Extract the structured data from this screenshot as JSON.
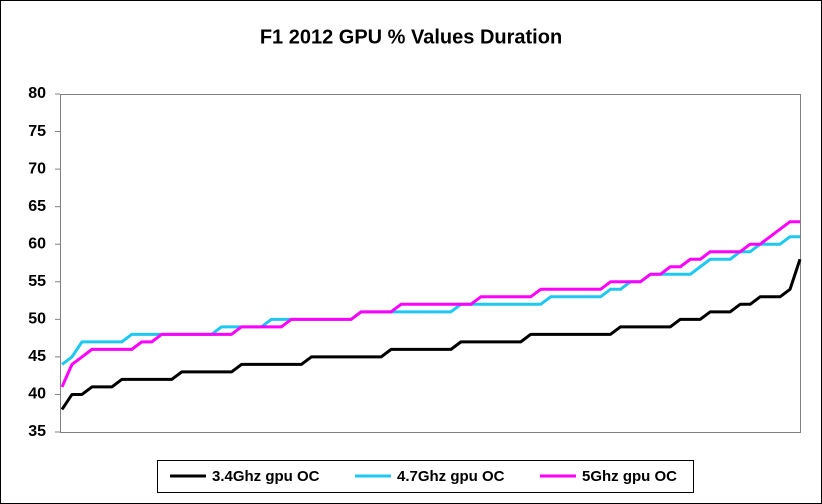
{
  "chart_data": {
    "type": "line",
    "title": "F1 2012 GPU % Values Duration",
    "categories": [
      null,
      null,
      null,
      null,
      null,
      null,
      null,
      null,
      null,
      null,
      null,
      null,
      null,
      null,
      null,
      null,
      null,
      null,
      null,
      null,
      null,
      null,
      null,
      null,
      null,
      null,
      null,
      null,
      null,
      null,
      null,
      null,
      null,
      null,
      null,
      null,
      null,
      null,
      null,
      null,
      null,
      null,
      null,
      null,
      null,
      null,
      null,
      null,
      null,
      null,
      null,
      null,
      null,
      null,
      null,
      null,
      null,
      null,
      null,
      null,
      null,
      null,
      null,
      null,
      null,
      null,
      null,
      null,
      null,
      null,
      null,
      null,
      null,
      null,
      null
    ],
    "series": [
      {
        "name": "3.4Ghz gpu OC",
        "color": "#000000",
        "values": [
          38,
          40,
          40,
          41,
          41,
          41,
          42,
          42,
          42,
          42,
          42,
          42,
          43,
          43,
          43,
          43,
          43,
          43,
          44,
          44,
          44,
          44,
          44,
          44,
          44,
          45,
          45,
          45,
          45,
          45,
          45,
          45,
          45,
          46,
          46,
          46,
          46,
          46,
          46,
          46,
          47,
          47,
          47,
          47,
          47,
          47,
          47,
          48,
          48,
          48,
          48,
          48,
          48,
          48,
          48,
          48,
          49,
          49,
          49,
          49,
          49,
          49,
          50,
          50,
          50,
          51,
          51,
          51,
          52,
          52,
          53,
          53,
          53,
          54,
          58
        ]
      },
      {
        "name": "4.7Ghz gpu OC",
        "color": "#1ec8f0",
        "values": [
          44,
          45,
          47,
          47,
          47,
          47,
          47,
          48,
          48,
          48,
          48,
          48,
          48,
          48,
          48,
          48,
          49,
          49,
          49,
          49,
          49,
          50,
          50,
          50,
          50,
          50,
          50,
          50,
          50,
          50,
          51,
          51,
          51,
          51,
          51,
          51,
          51,
          51,
          51,
          51,
          52,
          52,
          52,
          52,
          52,
          52,
          52,
          52,
          52,
          53,
          53,
          53,
          53,
          53,
          53,
          54,
          54,
          55,
          55,
          56,
          56,
          56,
          56,
          56,
          57,
          58,
          58,
          58,
          59,
          59,
          60,
          60,
          60,
          61,
          61
        ]
      },
      {
        "name": "5Ghz gpu OC",
        "color": "#ff00ff",
        "values": [
          41,
          44,
          45,
          46,
          46,
          46,
          46,
          46,
          47,
          47,
          48,
          48,
          48,
          48,
          48,
          48,
          48,
          48,
          49,
          49,
          49,
          49,
          49,
          50,
          50,
          50,
          50,
          50,
          50,
          50,
          51,
          51,
          51,
          51,
          52,
          52,
          52,
          52,
          52,
          52,
          52,
          52,
          53,
          53,
          53,
          53,
          53,
          53,
          54,
          54,
          54,
          54,
          54,
          54,
          54,
          55,
          55,
          55,
          55,
          56,
          56,
          57,
          57,
          58,
          58,
          59,
          59,
          59,
          59,
          60,
          60,
          61,
          62,
          63,
          63
        ]
      }
    ],
    "ylim": [
      35,
      80
    ],
    "yticks": [
      35,
      40,
      45,
      50,
      55,
      60,
      65,
      70,
      75,
      80
    ],
    "legend": "bottom",
    "grid": false
  }
}
